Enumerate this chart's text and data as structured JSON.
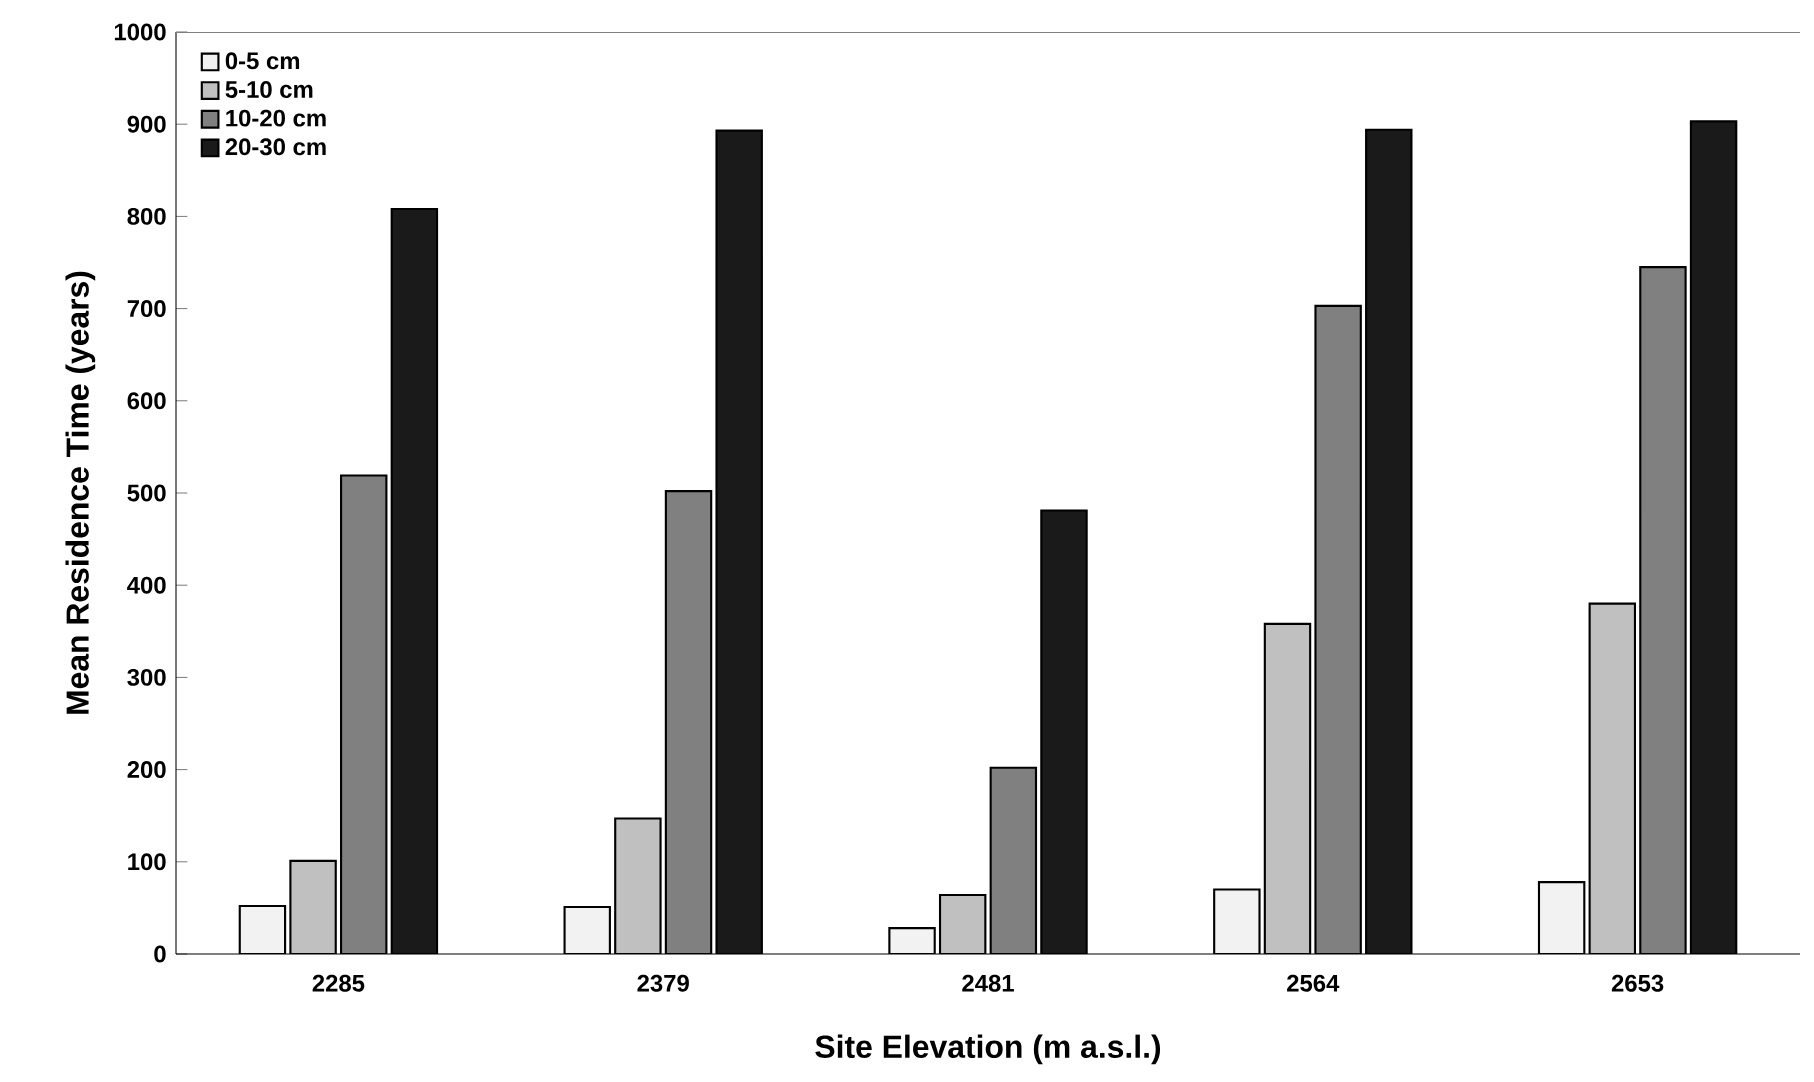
{
  "chart_data": {
    "type": "bar",
    "xlabel": "Site Elevation (m a.s.l.)",
    "ylabel": "Mean Residence Time (years)",
    "categories": [
      "2285",
      "2379",
      "2481",
      "2564",
      "2653"
    ],
    "series": [
      {
        "name": "0-5 cm",
        "color": "#f2f2f2",
        "values": [
          52,
          51,
          28,
          70,
          78
        ]
      },
      {
        "name": "5-10 cm",
        "color": "#c0c0c0",
        "values": [
          101,
          147,
          64,
          358,
          380
        ]
      },
      {
        "name": "10-20 cm",
        "color": "#808080",
        "values": [
          519,
          502,
          202,
          703,
          745
        ]
      },
      {
        "name": "20-30 cm",
        "color": "#1a1a1a",
        "values": [
          808,
          893,
          481,
          894,
          903
        ]
      }
    ],
    "ylim": [
      0,
      1000
    ],
    "yticks": [
      0,
      100,
      200,
      300,
      400,
      500,
      600,
      700,
      800,
      900,
      1000
    ],
    "grid": false,
    "legend": "top left"
  }
}
